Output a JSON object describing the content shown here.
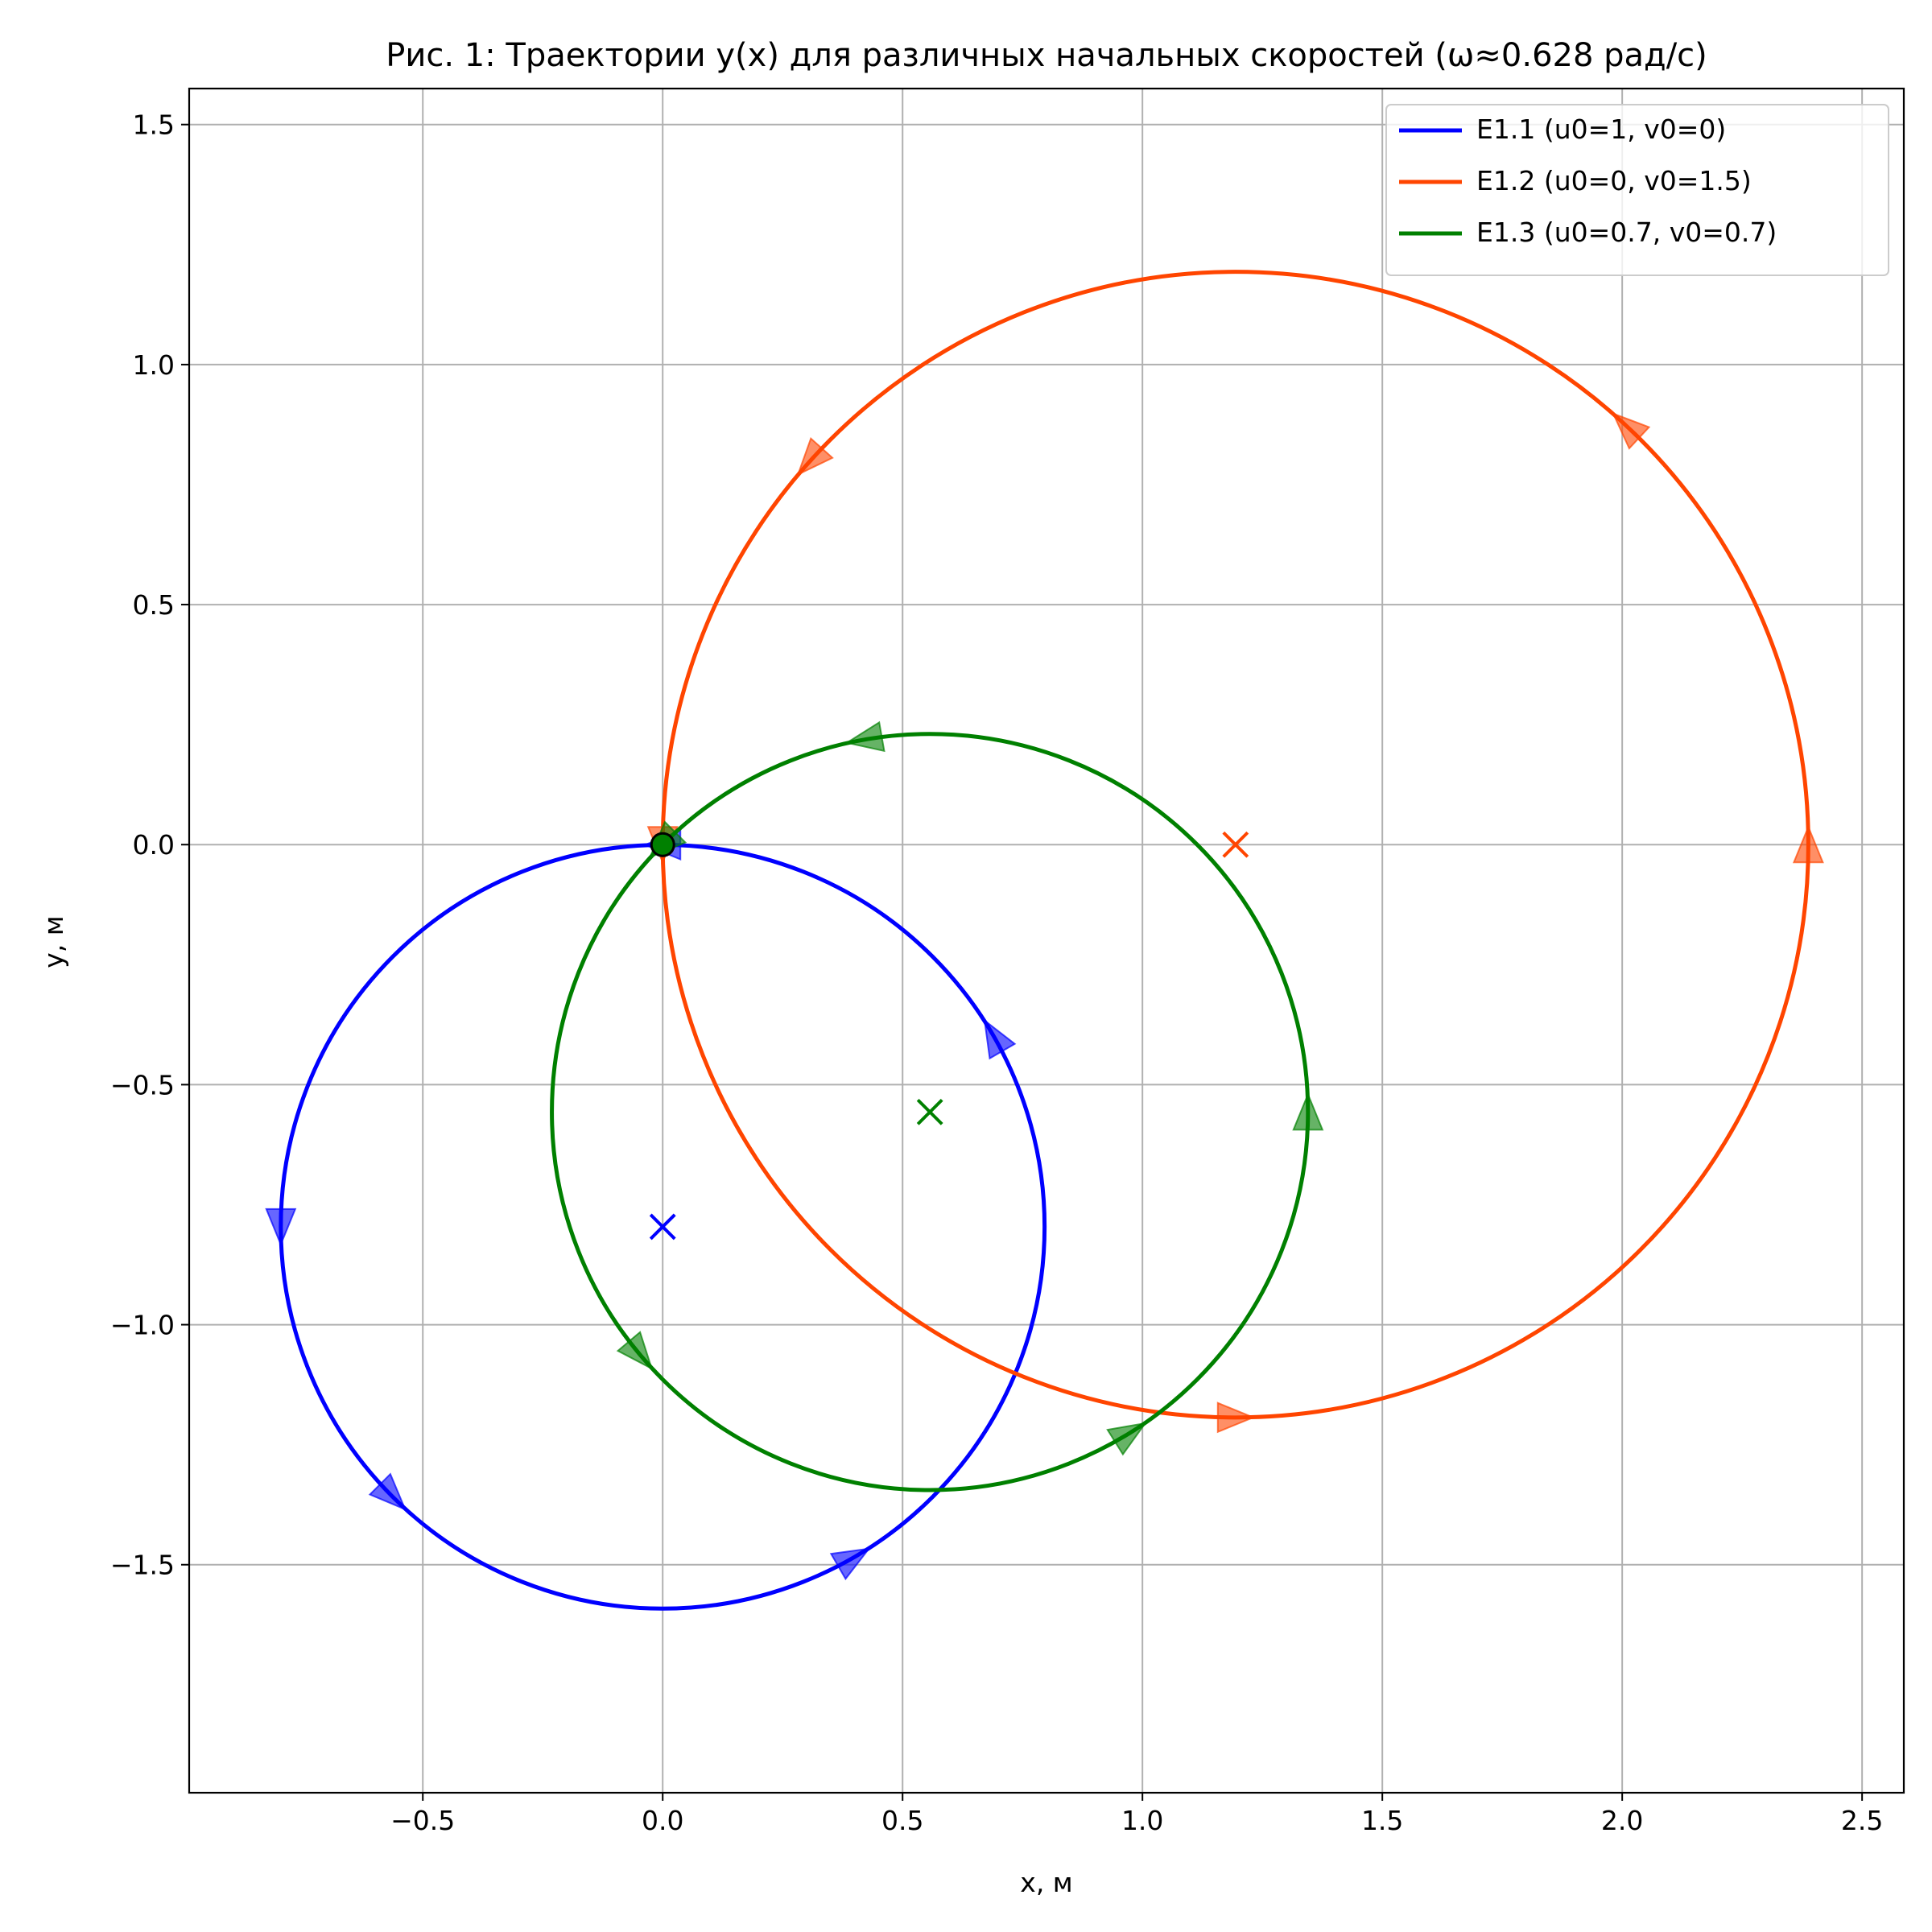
{
  "chart_data": {
    "type": "line",
    "title": "Рис. 1: Траектории y(x) для различных начальных скоростей (ω≈0.628 рад/с)",
    "xlabel": "x, м",
    "ylabel": "y, м",
    "xlim": [
      -0.987,
      2.587
    ],
    "ylim": [
      -1.975,
      1.575
    ],
    "xticks": [
      -0.5,
      0.0,
      0.5,
      1.0,
      1.5,
      2.0,
      2.5
    ],
    "xtick_labels": [
      "−0.5",
      "0.0",
      "0.5",
      "1.0",
      "1.5",
      "2.0",
      "2.5"
    ],
    "yticks": [
      -1.5,
      -1.0,
      -0.5,
      0.0,
      0.5,
      1.0,
      1.5
    ],
    "ytick_labels": [
      "−1.5",
      "−1.0",
      "−0.5",
      "0.0",
      "0.5",
      "1.0",
      "1.5"
    ],
    "grid": true,
    "legend_position": "top-right",
    "series": [
      {
        "name": "E1.1 (u0=1, v0=0)",
        "color": "#0000ff",
        "u0": 1,
        "v0": 0,
        "shape": "circle",
        "center": [
          0.0,
          -0.796
        ],
        "radius": 0.796,
        "direction": "clockwise",
        "arrow_angles_deg": [
          90,
          30,
          -60,
          -135,
          180
        ]
      },
      {
        "name": "E1.2 (u0=0, v0=1.5)",
        "color": "#ff4500",
        "u0": 0,
        "v0": 1.5,
        "shape": "circle",
        "center": [
          1.194,
          0.0
        ],
        "radius": 1.194,
        "direction": "clockwise",
        "arrow_angles_deg": [
          180,
          138,
          47,
          0,
          -90
        ]
      },
      {
        "name": "E1.3 (u0=0.7, v0=0.7)",
        "color": "#008000",
        "u0": 0.7,
        "v0": 0.7,
        "shape": "ellipse",
        "center": [
          0.557,
          -0.557
        ],
        "radius_x": 0.788,
        "radius_y": 0.788,
        "direction": "clockwise",
        "arrow_angles_deg": [
          135,
          100,
          0,
          -58,
          -140
        ]
      }
    ],
    "centers_markers": [
      {
        "x": 0.0,
        "y": -0.796,
        "color": "#0000ff"
      },
      {
        "x": 1.194,
        "y": 0.0,
        "color": "#ff4500"
      },
      {
        "x": 0.557,
        "y": -0.557,
        "color": "#008000"
      }
    ],
    "start_point": {
      "x": 0.0,
      "y": 0.0,
      "color": "#008000"
    }
  }
}
